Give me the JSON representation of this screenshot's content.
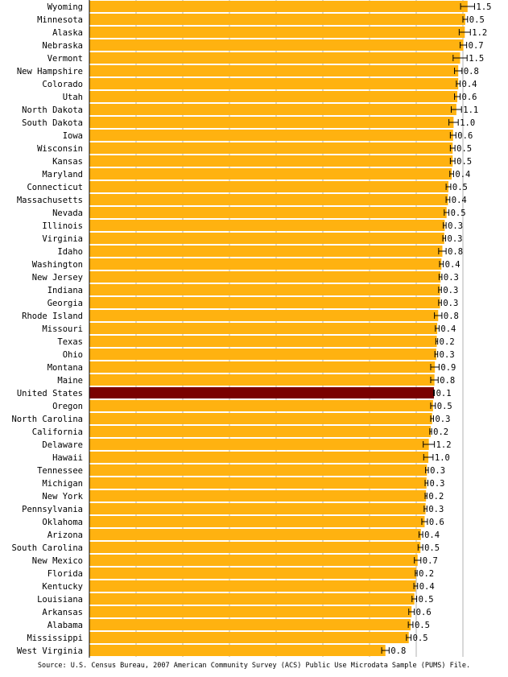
{
  "chart_data": {
    "type": "bar",
    "orientation": "horizontal",
    "xlim": [
      0,
      100
    ],
    "grid": true,
    "colors": {
      "bar": "#FFB210",
      "highlight": "#7A0000",
      "gridline": "#B0B0B0",
      "error_bar": "#000000"
    },
    "highlight_category": "United States",
    "categories": [
      "Wyoming",
      "Minnesota",
      "Alaska",
      "Nebraska",
      "Vermont",
      "New Hampshire",
      "Colorado",
      "Utah",
      "North Dakota",
      "South Dakota",
      "Iowa",
      "Wisconsin",
      "Kansas",
      "Maryland",
      "Connecticut",
      "Massachusetts",
      "Nevada",
      "Illinois",
      "Virginia",
      "Idaho",
      "Washington",
      "New Jersey",
      "Indiana",
      "Georgia",
      "Rhode Island",
      "Missouri",
      "Texas",
      "Ohio",
      "Montana",
      "Maine",
      "United States",
      "Oregon",
      "North Carolina",
      "California",
      "Delaware",
      "Hawaii",
      "Tennessee",
      "Michigan",
      "New York",
      "Pennsylvania",
      "Oklahoma",
      "Arizona",
      "South Carolina",
      "New Mexico",
      "Florida",
      "Kentucky",
      "Louisiana",
      "Arkansas",
      "Alabama",
      "Mississippi",
      "West Virginia"
    ],
    "values": [
      81.0,
      80.5,
      80.4,
      80.1,
      79.4,
      79.0,
      79.0,
      78.8,
      78.6,
      78.0,
      77.9,
      77.8,
      77.8,
      77.6,
      76.9,
      76.8,
      76.5,
      76.1,
      76.0,
      75.6,
      75.4,
      75.2,
      75.1,
      75.1,
      74.7,
      74.5,
      74.4,
      74.3,
      74.0,
      73.9,
      73.8,
      73.6,
      73.4,
      73.1,
      72.7,
      72.6,
      72.3,
      72.2,
      72.1,
      72.0,
      71.8,
      71.0,
      70.9,
      70.3,
      70.0,
      69.9,
      69.6,
      69.0,
      68.8,
      68.4,
      63.4
    ],
    "moe": [
      "1.5",
      "0.5",
      "1.2",
      "0.7",
      "1.5",
      "0.8",
      "0.4",
      "0.6",
      "1.1",
      "1.0",
      "0.6",
      "0.5",
      "0.5",
      "0.4",
      "0.5",
      "0.4",
      "0.5",
      "0.3",
      "0.3",
      "0.8",
      "0.4",
      "0.3",
      "0.3",
      "0.3",
      "0.8",
      "0.4",
      "0.2",
      "0.3",
      "0.9",
      "0.8",
      "0.1",
      "0.5",
      "0.3",
      "0.2",
      "1.2",
      "1.0",
      "0.3",
      "0.3",
      "0.2",
      "0.3",
      "0.6",
      "0.4",
      "0.5",
      "0.7",
      "0.2",
      "0.4",
      "0.5",
      "0.6",
      "0.5",
      "0.5",
      "0.8"
    ],
    "source": "Source: U.S. Census Bureau, 2007 American Community Survey (ACS) Public Use Microdata Sample (PUMS) File."
  }
}
